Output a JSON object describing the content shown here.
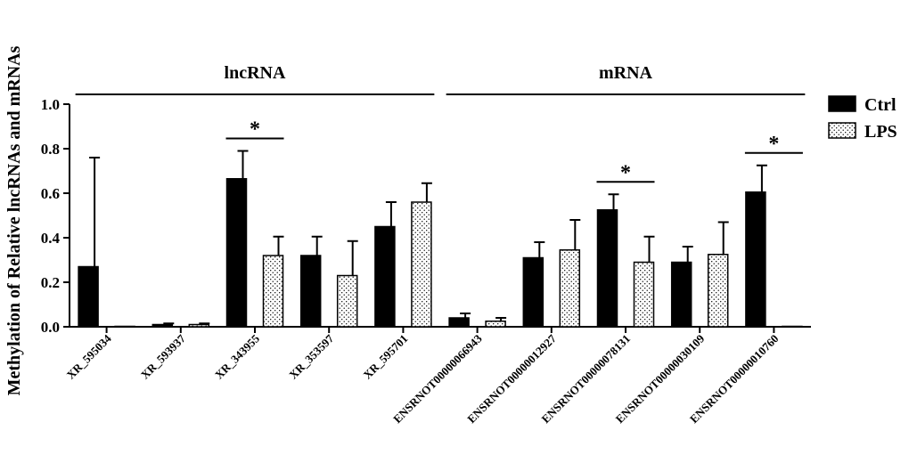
{
  "chart_data": {
    "type": "bar",
    "title": "",
    "xlabel": "",
    "ylabel": "Methylation of Relative lncRNAs and mRNAs",
    "ylim": [
      0,
      1.0
    ],
    "yticks": [
      "0.0",
      "0.2",
      "0.4",
      "0.6",
      "0.8",
      "1.0"
    ],
    "grid": false,
    "legend_position": "top-right",
    "categories": [
      "XR_595034",
      "XR_593937",
      "XR_343955",
      "XR_353597",
      "XR_595701",
      "ENSRNOT00000066943",
      "ENSRNOT00000012927",
      "ENSRNOT00000078131",
      "ENSRNOT00000030109",
      "ENSRNOT00000010760"
    ],
    "series": [
      {
        "name": "Ctrl",
        "fill": "solid",
        "color": "#000000",
        "values": [
          0.27,
          0.01,
          0.665,
          0.32,
          0.45,
          0.04,
          0.31,
          0.525,
          0.29,
          0.605
        ],
        "errors": [
          0.49,
          0.005,
          0.125,
          0.085,
          0.11,
          0.02,
          0.07,
          0.07,
          0.07,
          0.12
        ]
      },
      {
        "name": "LPS",
        "fill": "dotted",
        "color": "#ffffff",
        "values": [
          0.002,
          0.01,
          0.32,
          0.23,
          0.56,
          0.025,
          0.345,
          0.29,
          0.325,
          0.002
        ],
        "errors": [
          0.0,
          0.005,
          0.085,
          0.155,
          0.085,
          0.015,
          0.135,
          0.115,
          0.145,
          0.0
        ]
      }
    ],
    "groups": [
      {
        "label": "lncRNA",
        "from": 0,
        "to": 4
      },
      {
        "label": "mRNA",
        "from": 5,
        "to": 9
      }
    ],
    "significance": [
      {
        "category_index": 2,
        "label": "*"
      },
      {
        "category_index": 7,
        "label": "*"
      },
      {
        "category_index": 9,
        "label": "*"
      }
    ]
  }
}
